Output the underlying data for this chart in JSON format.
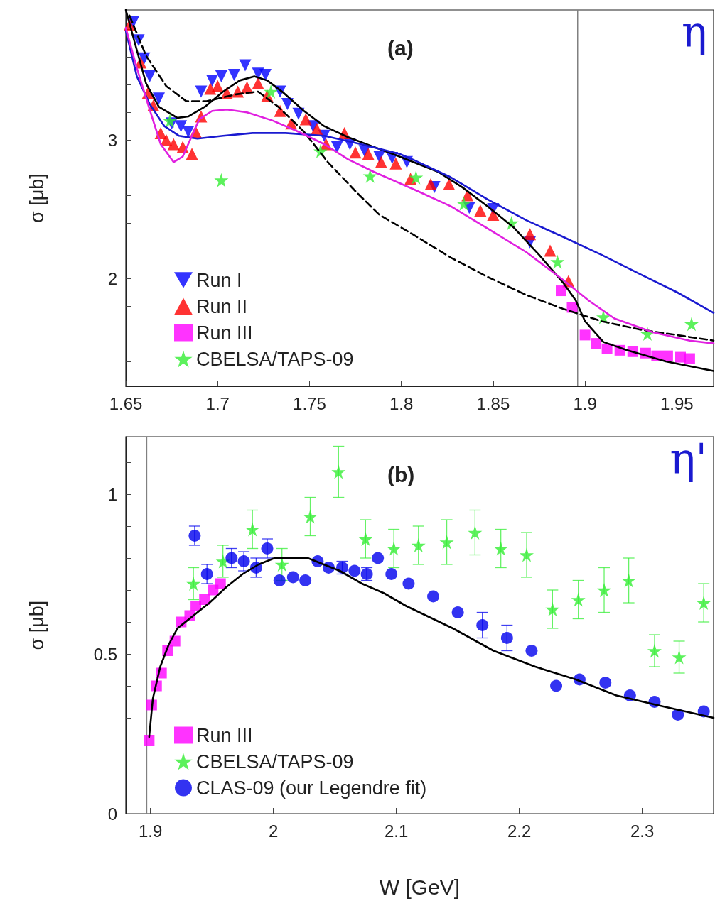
{
  "chart_data": [
    {
      "type": "scatter",
      "title": "η",
      "annotations": [
        "(a)"
      ],
      "ylabel": "σ [μb]",
      "xlim": [
        1.65,
        1.97
      ],
      "ylim": [
        1.22,
        3.94
      ],
      "xticks": [
        1.65,
        1.7,
        1.75,
        1.8,
        1.85,
        1.9,
        1.95
      ],
      "yticks": [
        {
          "value": 1.4,
          "label": null
        },
        {
          "value": 1.6,
          "label": null
        },
        {
          "value": 1.8,
          "label": null
        },
        2,
        {
          "value": 2.2,
          "label": null
        },
        {
          "value": 2.4,
          "label": null
        },
        {
          "value": 2.6,
          "label": null
        },
        {
          "value": 2.8,
          "label": null
        },
        3,
        {
          "value": 3.2,
          "label": null
        },
        {
          "value": 3.4,
          "label": null
        },
        {
          "value": 3.6,
          "label": null
        },
        {
          "value": 3.8,
          "label": null
        }
      ],
      "grid": false,
      "legend": "bottom left",
      "ref_lines": [
        {
          "axis": "x",
          "value": 1.896,
          "color": "#808080"
        }
      ],
      "series": [
        {
          "name": "Run I",
          "type": "scatter",
          "marker": "triangle-down",
          "color": "#0000ff",
          "x": [
            1.654,
            1.657,
            1.66,
            1.663,
            1.668,
            1.675,
            1.68,
            1.684,
            1.691,
            1.697,
            1.702,
            1.709,
            1.715,
            1.722,
            1.726,
            1.734,
            1.738,
            1.744,
            1.752,
            1.758,
            1.765,
            1.772,
            1.78,
            1.788,
            1.795,
            1.803,
            1.818,
            1.837,
            1.85,
            1.87
          ],
          "values": [
            3.85,
            3.72,
            3.59,
            3.46,
            3.3,
            3.12,
            3.1,
            3.06,
            3.35,
            3.43,
            3.46,
            3.47,
            3.54,
            3.48,
            3.47,
            3.35,
            3.26,
            3.19,
            3.1,
            3.03,
            2.95,
            2.97,
            2.92,
            2.88,
            2.87,
            2.84,
            2.66,
            2.51,
            2.5,
            2.26
          ]
        },
        {
          "name": "Run II",
          "type": "scatter",
          "marker": "triangle",
          "color": "#ff0000",
          "x": [
            1.652,
            1.658,
            1.662,
            1.665,
            1.669,
            1.672,
            1.676,
            1.681,
            1.686,
            1.688,
            1.691,
            1.696,
            1.7,
            1.705,
            1.711,
            1.716,
            1.722,
            1.727,
            1.734,
            1.74,
            1.748,
            1.754,
            1.759,
            1.769,
            1.775,
            1.782,
            1.789,
            1.797,
            1.805,
            1.816,
            1.826,
            1.836,
            1.843,
            1.85,
            1.87,
            1.881,
            1.891
          ],
          "values": [
            3.83,
            3.56,
            3.34,
            3.25,
            3.05,
            3.0,
            2.97,
            2.95,
            2.9,
            3.06,
            3.17,
            3.37,
            3.39,
            3.34,
            3.35,
            3.38,
            3.41,
            3.32,
            3.21,
            3.12,
            3.15,
            3.08,
            2.97,
            3.05,
            2.91,
            2.9,
            2.84,
            2.83,
            2.72,
            2.68,
            2.68,
            2.6,
            2.49,
            2.46,
            2.32,
            2.2,
            1.98
          ]
        },
        {
          "name": "Run III",
          "type": "scatter",
          "marker": "square",
          "color": "#ff00ff",
          "x": [
            1.887,
            1.893,
            1.9,
            1.906,
            1.912,
            1.919,
            1.926,
            1.933,
            1.939,
            1.945,
            1.952,
            1.957
          ],
          "values": [
            1.91,
            1.79,
            1.59,
            1.53,
            1.49,
            1.48,
            1.47,
            1.46,
            1.44,
            1.44,
            1.43,
            1.42
          ]
        },
        {
          "name": "CBELSA/TAPS-09",
          "type": "scatter",
          "marker": "star",
          "color": "#33ee33",
          "x": [
            1.674,
            1.702,
            1.729,
            1.756,
            1.783,
            1.808,
            1.834,
            1.86,
            1.885,
            1.91,
            1.934,
            1.958
          ],
          "values": [
            3.14,
            2.71,
            3.35,
            2.92,
            2.74,
            2.73,
            2.54,
            2.4,
            2.12,
            1.72,
            1.6,
            1.67
          ]
        },
        {
          "type": "line",
          "marker": "none",
          "line_style": "solid",
          "color": "#000000",
          "x": [
            1.65,
            1.656,
            1.661,
            1.668,
            1.678,
            1.684,
            1.693,
            1.703,
            1.712,
            1.72,
            1.727,
            1.736,
            1.747,
            1.758,
            1.771,
            1.785,
            1.799,
            1.82,
            1.833,
            1.847,
            1.861,
            1.875,
            1.888,
            1.895,
            1.9,
            1.91,
            1.923,
            1.944,
            1.97
          ],
          "values": [
            3.94,
            3.65,
            3.41,
            3.24,
            3.16,
            3.17,
            3.24,
            3.35,
            3.43,
            3.46,
            3.43,
            3.34,
            3.21,
            3.1,
            3.02,
            2.95,
            2.88,
            2.77,
            2.66,
            2.52,
            2.37,
            2.17,
            1.97,
            1.84,
            1.69,
            1.54,
            1.48,
            1.4,
            1.33
          ]
        },
        {
          "type": "line",
          "marker": "none",
          "line_style": "dashed",
          "color": "#000000",
          "x": [
            1.652,
            1.661,
            1.672,
            1.683,
            1.694,
            1.71,
            1.722,
            1.733,
            1.747,
            1.76,
            1.775,
            1.788,
            1.806,
            1.827,
            1.847,
            1.868,
            1.888,
            1.909,
            1.93,
            1.95,
            1.97
          ],
          "values": [
            3.9,
            3.61,
            3.39,
            3.28,
            3.28,
            3.33,
            3.35,
            3.24,
            3.06,
            2.84,
            2.63,
            2.46,
            2.32,
            2.15,
            2.01,
            1.88,
            1.78,
            1.69,
            1.63,
            1.59,
            1.55
          ]
        },
        {
          "type": "line",
          "marker": "none",
          "line_style": "solid",
          "color": "#1a1ad0",
          "x": [
            1.65,
            1.656,
            1.663,
            1.671,
            1.679,
            1.689,
            1.703,
            1.719,
            1.737,
            1.758,
            1.778,
            1.799,
            1.806,
            1.827,
            1.847,
            1.868,
            1.888,
            1.909,
            1.93,
            1.95,
            1.97
          ],
          "values": [
            3.79,
            3.46,
            3.26,
            3.1,
            3.03,
            3.01,
            3.03,
            3.05,
            3.05,
            3.03,
            2.97,
            2.9,
            2.86,
            2.73,
            2.57,
            2.42,
            2.3,
            2.17,
            2.03,
            1.9,
            1.75
          ]
        },
        {
          "type": "line",
          "marker": "none",
          "line_style": "solid",
          "color": "#e020e0",
          "x": [
            1.65,
            1.656,
            1.663,
            1.669,
            1.676,
            1.681,
            1.686,
            1.69,
            1.697,
            1.705,
            1.716,
            1.73,
            1.744,
            1.758,
            1.771,
            1.785,
            1.809,
            1.827,
            1.847,
            1.868,
            1.888,
            1.902,
            1.916,
            1.937,
            1.957,
            1.97
          ],
          "values": [
            3.81,
            3.52,
            3.22,
            2.97,
            2.84,
            2.88,
            3.03,
            3.15,
            3.21,
            3.22,
            3.2,
            3.14,
            3.06,
            2.97,
            2.86,
            2.77,
            2.63,
            2.52,
            2.36,
            2.19,
            1.99,
            1.84,
            1.71,
            1.61,
            1.55,
            1.53
          ]
        }
      ]
    },
    {
      "type": "scatter",
      "title": "η'",
      "annotations": [
        "(b)"
      ],
      "xlabel": "W [GeV]",
      "ylabel": "σ [μb]",
      "xlim": [
        1.88,
        2.358
      ],
      "ylim": [
        0,
        1.18
      ],
      "xticks": [
        1.9,
        2,
        2.1,
        2.2,
        2.3
      ],
      "yticks": [
        0,
        {
          "value": 0.1,
          "label": null
        },
        {
          "value": 0.2,
          "label": null
        },
        {
          "value": 0.3,
          "label": null
        },
        {
          "value": 0.4,
          "label": null
        },
        0.5,
        {
          "value": 0.6,
          "label": null
        },
        {
          "value": 0.7,
          "label": null
        },
        {
          "value": 0.8,
          "label": null
        },
        {
          "value": 0.9,
          "label": null
        },
        1,
        {
          "value": 1.1,
          "label": null
        }
      ],
      "grid": false,
      "legend": "bottom left",
      "ref_lines": [
        {
          "axis": "x",
          "value": 1.897,
          "color": "#808080"
        }
      ],
      "series": [
        {
          "name": "Run III",
          "type": "scatter",
          "marker": "square",
          "color": "#ff00ff",
          "x": [
            1.899,
            1.901,
            1.905,
            1.909,
            1.914,
            1.92,
            1.925,
            1.932,
            1.937,
            1.944,
            1.951,
            1.957
          ],
          "values": [
            0.23,
            0.34,
            0.4,
            0.44,
            0.51,
            0.54,
            0.6,
            0.62,
            0.65,
            0.67,
            0.7,
            0.72
          ]
        },
        {
          "name": "CBELSA/TAPS-09",
          "type": "scatter",
          "marker": "star",
          "color": "#33ee33",
          "x": [
            1.935,
            1.959,
            1.983,
            2.007,
            2.03,
            2.053,
            2.075,
            2.098,
            2.118,
            2.141,
            2.164,
            2.185,
            2.206,
            2.227,
            2.248,
            2.269,
            2.289,
            2.31,
            2.33,
            2.35
          ],
          "values": [
            0.72,
            0.79,
            0.89,
            0.78,
            0.93,
            1.07,
            0.86,
            0.83,
            0.84,
            0.85,
            0.88,
            0.83,
            0.81,
            0.64,
            0.67,
            0.7,
            0.73,
            0.51,
            0.49,
            0.66
          ],
          "errors": [
            0.05,
            0.05,
            0.06,
            0.05,
            0.06,
            0.08,
            0.06,
            0.06,
            0.06,
            0.07,
            0.07,
            0.06,
            0.07,
            0.06,
            0.06,
            0.07,
            0.07,
            0.05,
            0.05,
            0.06
          ]
        },
        {
          "name": "CLAS-09 (our Legendre fit)",
          "type": "scatter",
          "marker": "circle",
          "color": "#0000ee",
          "x": [
            1.936,
            1.946,
            1.966,
            1.976,
            1.986,
            1.995,
            2.005,
            2.016,
            2.026,
            2.036,
            2.045,
            2.056,
            2.066,
            2.076,
            2.085,
            2.096,
            2.11,
            2.13,
            2.15,
            2.17,
            2.19,
            2.21,
            2.23,
            2.249,
            2.27,
            2.29,
            2.31,
            2.329,
            2.35
          ],
          "values": [
            0.87,
            0.75,
            0.8,
            0.79,
            0.77,
            0.83,
            0.73,
            0.74,
            0.73,
            0.79,
            0.77,
            0.77,
            0.76,
            0.75,
            0.8,
            0.75,
            0.72,
            0.68,
            0.63,
            0.59,
            0.55,
            0.51,
            0.4,
            0.42,
            0.41,
            0.37,
            0.35,
            0.31,
            0.32
          ],
          "errors": [
            0.03,
            0.03,
            0.03,
            0.03,
            0.03,
            0.03,
            null,
            null,
            null,
            null,
            null,
            0.02,
            null,
            0.02,
            null,
            null,
            null,
            null,
            null,
            0.04,
            0.04,
            null,
            null,
            null,
            null,
            null,
            null,
            null,
            null
          ]
        },
        {
          "type": "line",
          "marker": "none",
          "line_style": "solid",
          "color": "#000000",
          "x": [
            1.899,
            1.902,
            1.908,
            1.915,
            1.922,
            1.935,
            1.948,
            1.962,
            1.975,
            1.988,
            2.001,
            2.014,
            2.028,
            2.041,
            2.054,
            2.072,
            2.09,
            2.108,
            2.146,
            2.179,
            2.213,
            2.246,
            2.279,
            2.312,
            2.358
          ],
          "values": [
            0.24,
            0.36,
            0.46,
            0.53,
            0.58,
            0.62,
            0.66,
            0.71,
            0.75,
            0.78,
            0.8,
            0.8,
            0.8,
            0.78,
            0.76,
            0.72,
            0.69,
            0.65,
            0.58,
            0.51,
            0.46,
            0.42,
            0.37,
            0.34,
            0.3
          ]
        }
      ]
    }
  ]
}
